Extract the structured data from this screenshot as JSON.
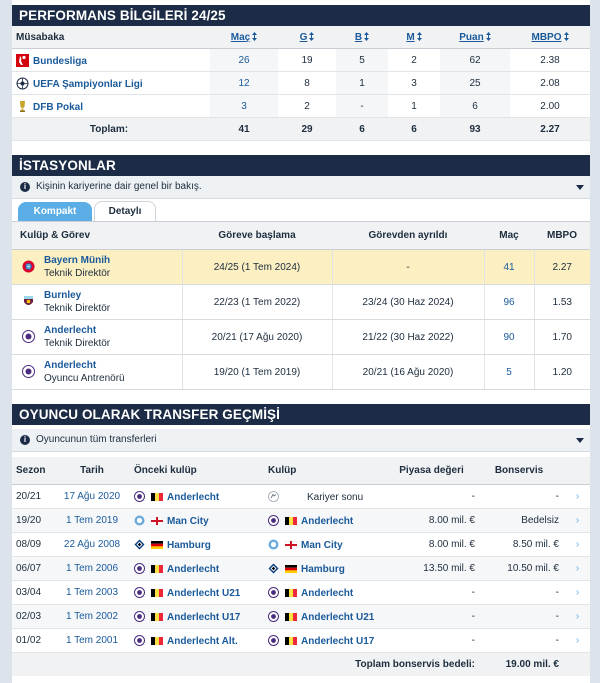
{
  "performance": {
    "title": "PERFORMANS BİLGİLERİ 24/25",
    "headers": {
      "competition": "Müsabaka",
      "matches": "Maç",
      "goals": "G",
      "yellow": "B",
      "second_yellow": "M",
      "points": "Puan",
      "ppm": "MBPO"
    },
    "rows": [
      {
        "competition": "Bundesliga",
        "matches": "26",
        "goals": "19",
        "yellow": "5",
        "second_yellow": "2",
        "points": "62",
        "ppm": "2.38"
      },
      {
        "competition": "UEFA Şampiyonlar Ligi",
        "matches": "12",
        "goals": "8",
        "yellow": "1",
        "second_yellow": "3",
        "points": "25",
        "ppm": "2.08"
      },
      {
        "competition": "DFB Pokal",
        "matches": "3",
        "goals": "2",
        "yellow": "-",
        "second_yellow": "1",
        "points": "6",
        "ppm": "2.00"
      }
    ],
    "total": {
      "label": "Toplam:",
      "matches": "41",
      "goals": "29",
      "yellow": "6",
      "second_yellow": "6",
      "points": "93",
      "ppm": "2.27"
    }
  },
  "stations": {
    "title": "İSTASYONLAR",
    "info": "Kişinin kariyerine dair genel bir bakış.",
    "tabs": {
      "compact": "Kompakt",
      "detailed": "Detaylı"
    },
    "headers": {
      "club": "Kulüp & Görev",
      "start": "Göreve başlama",
      "end": "Görevden ayrıldı",
      "matches": "Maç",
      "ppm": "MBPO"
    },
    "rows": [
      {
        "club": "Bayern Münih",
        "role": "Teknik Direktör",
        "start": "24/25 (1 Tem 2024)",
        "end": "-",
        "matches": "41",
        "ppm": "2.27"
      },
      {
        "club": "Burnley",
        "role": "Teknik Direktör",
        "start": "22/23 (1 Tem 2022)",
        "end": "23/24 (30 Haz 2024)",
        "matches": "96",
        "ppm": "1.53"
      },
      {
        "club": "Anderlecht",
        "role": "Teknik Direktör",
        "start": "20/21 (17 Ağu 2020)",
        "end": "21/22 (30 Haz 2022)",
        "matches": "90",
        "ppm": "1.70"
      },
      {
        "club": "Anderlecht",
        "role": "Oyuncu Antrenörü",
        "start": "19/20 (1 Tem 2019)",
        "end": "20/21 (16 Ağu 2020)",
        "matches": "5",
        "ppm": "1.20"
      }
    ]
  },
  "transfers": {
    "title": "OYUNCU OLARAK TRANSFER GEÇMİŞİ",
    "info": "Oyuncunun tüm transferleri",
    "headers": {
      "season": "Sezon",
      "date": "Tarih",
      "from": "Önceki kulüp",
      "to": "Kulüp",
      "value": "Piyasa değeri",
      "fee": "Bonservis"
    },
    "rows": [
      {
        "season": "20/21",
        "date": "17 Ağu 2020",
        "from": "Anderlecht",
        "to": "Kariyer sonu",
        "value": "-",
        "fee": "-",
        "arrow": "›"
      },
      {
        "season": "19/20",
        "date": "1 Tem 2019",
        "from": "Man City",
        "to": "Anderlecht",
        "value": "8.00 mil. €",
        "fee": "Bedelsiz",
        "arrow": "›"
      },
      {
        "season": "08/09",
        "date": "22 Ağu 2008",
        "from": "Hamburg",
        "to": "Man City",
        "value": "8.00 mil. €",
        "fee": "8.50 mil. €",
        "arrow": "›"
      },
      {
        "season": "06/07",
        "date": "1 Tem 2006",
        "from": "Anderlecht",
        "to": "Hamburg",
        "value": "13.50 mil. €",
        "fee": "10.50 mil. €",
        "arrow": "›"
      },
      {
        "season": "03/04",
        "date": "1 Tem 2003",
        "from": "Anderlecht U21",
        "to": "Anderlecht",
        "value": "-",
        "fee": "-",
        "arrow": "›"
      },
      {
        "season": "02/03",
        "date": "1 Tem 2002",
        "from": "Anderlecht U17",
        "to": "Anderlecht U21",
        "value": "-",
        "fee": "-",
        "arrow": "›"
      },
      {
        "season": "01/02",
        "date": "1 Tem 2001",
        "from": "Anderlecht Alt.",
        "to": "Anderlecht U17",
        "value": "-",
        "fee": "-",
        "arrow": "›"
      }
    ],
    "total": {
      "label": "Toplam bonservis bedeli:",
      "value": "19.00 mil. €"
    }
  },
  "colors": {
    "header_bg": "#1c2b46",
    "link": "#1a5a9a",
    "tab_active": "#5aaee5",
    "highlight_row": "#fcefc2"
  }
}
